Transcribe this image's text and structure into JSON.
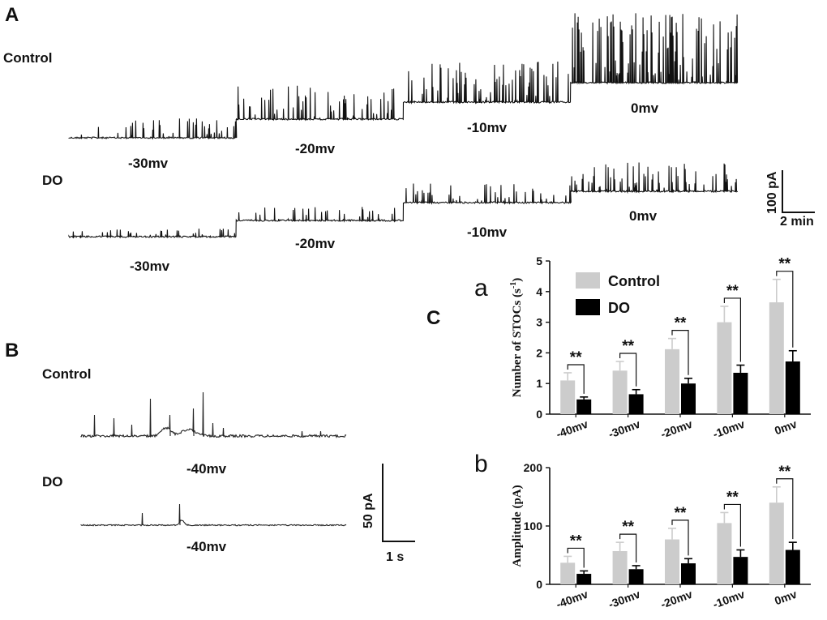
{
  "panels": {
    "A": {
      "letter": "A",
      "control_label": "Control",
      "do_label": "DO",
      "control_voltages": [
        "-30mv",
        "-20mv",
        "-10mv",
        "0mv"
      ],
      "do_voltages": [
        "-30mv",
        "-20mv",
        "-10mv",
        "0mv"
      ],
      "scale_y": "100 pA",
      "scale_x": "2 min"
    },
    "B": {
      "letter": "B",
      "control_label": "Control",
      "do_label": "DO",
      "control_voltage": "-40mv",
      "do_voltage": "-40mv",
      "scale_y": "50 pA",
      "scale_x": "1 s"
    },
    "C": {
      "letter": "C"
    }
  },
  "colors": {
    "control": "#cccccc",
    "do": "#000000",
    "trace": "#111111"
  },
  "chart_data": [
    {
      "id": "a",
      "type": "bar",
      "sublabel": "a",
      "ylabel": "Number of STOCs (s",
      "ylabel_sup": "-1",
      "ylabel_close": ")",
      "ylim": [
        0,
        5
      ],
      "yticks": [
        0,
        1,
        2,
        3,
        4,
        5
      ],
      "categories": [
        "-40mv",
        "-30mv",
        "-20mv",
        "-10mv",
        "0mv"
      ],
      "series": [
        {
          "name": "Control",
          "color": "#cccccc",
          "values": [
            1.1,
            1.42,
            2.12,
            3.0,
            3.65
          ],
          "errors": [
            0.25,
            0.3,
            0.35,
            0.52,
            0.75
          ]
        },
        {
          "name": "DO",
          "color": "#000000",
          "values": [
            0.48,
            0.65,
            1.0,
            1.35,
            1.72
          ],
          "errors": [
            0.08,
            0.15,
            0.17,
            0.25,
            0.35
          ]
        }
      ],
      "significance": [
        "**",
        "**",
        "**",
        "**",
        "**"
      ],
      "legend": [
        "Control",
        "DO"
      ],
      "legend_position": "top-left"
    },
    {
      "id": "b",
      "type": "bar",
      "sublabel": "b",
      "ylabel": "Amplitude (pA)",
      "ylim": [
        0,
        200
      ],
      "yticks": [
        0,
        100,
        200
      ],
      "categories": [
        "-40mv",
        "-30mv",
        "-20mv",
        "-10mv",
        "0mv"
      ],
      "series": [
        {
          "name": "Control",
          "color": "#cccccc",
          "values": [
            37,
            57,
            77,
            105,
            140
          ],
          "errors": [
            11,
            15,
            19,
            18,
            27
          ]
        },
        {
          "name": "DO",
          "color": "#000000",
          "values": [
            18,
            26,
            36,
            47,
            59
          ],
          "errors": [
            5,
            6,
            8,
            12,
            13
          ]
        }
      ],
      "significance": [
        "**",
        "**",
        "**",
        "**",
        "**"
      ]
    }
  ]
}
